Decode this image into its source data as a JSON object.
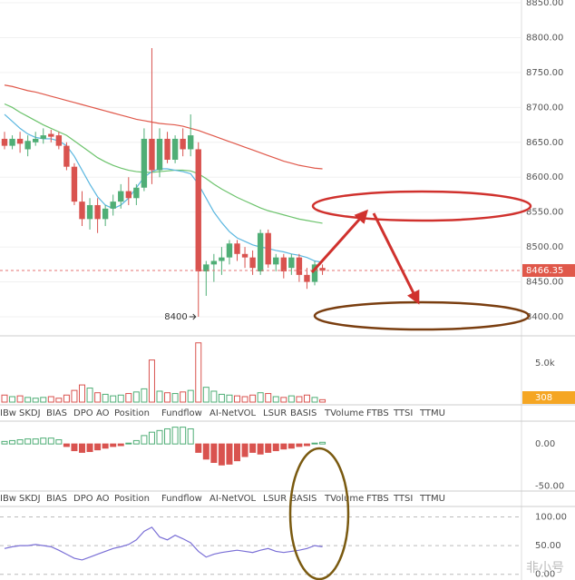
{
  "chart_data": {
    "type": "candlestick",
    "open": [
      8655,
      8645,
      8655,
      8640,
      8650,
      8655,
      8662,
      8660,
      8645,
      8615,
      8565,
      8540,
      8560,
      8540,
      8555,
      8565,
      8580,
      8570,
      8585,
      8655,
      8610,
      8655,
      8625,
      8655,
      8640,
      8640,
      8465,
      8475,
      8480,
      8485,
      8505,
      8490,
      8485,
      8465,
      8520,
      8475,
      8485,
      8470,
      8485,
      8460,
      8450,
      8470
    ],
    "high": [
      8665,
      8660,
      8665,
      8660,
      8665,
      8670,
      8668,
      8665,
      8650,
      8620,
      8580,
      8570,
      8570,
      8560,
      8575,
      8590,
      8600,
      8590,
      8670,
      8785,
      8670,
      8665,
      8660,
      8670,
      8690,
      8650,
      8480,
      8490,
      8500,
      8510,
      8510,
      8500,
      8495,
      8525,
      8525,
      8490,
      8490,
      8490,
      8490,
      8470,
      8480,
      8475
    ],
    "low": [
      8640,
      8640,
      8635,
      8630,
      8645,
      8648,
      8650,
      8640,
      8610,
      8560,
      8530,
      8525,
      8520,
      8530,
      8545,
      8555,
      8560,
      8560,
      8580,
      8590,
      8600,
      8620,
      8620,
      8630,
      8630,
      8400,
      8430,
      8450,
      8460,
      8475,
      8480,
      8470,
      8460,
      8460,
      8470,
      8465,
      8455,
      8460,
      8450,
      8440,
      8445,
      8460
    ],
    "close": [
      8645,
      8655,
      8648,
      8652,
      8655,
      8660,
      8658,
      8645,
      8615,
      8565,
      8540,
      8560,
      8540,
      8555,
      8565,
      8580,
      8570,
      8585,
      8655,
      8610,
      8655,
      8625,
      8655,
      8640,
      8660,
      8465,
      8475,
      8480,
      8485,
      8505,
      8490,
      8485,
      8470,
      8520,
      8475,
      8485,
      8465,
      8485,
      8460,
      8450,
      8475,
      8466
    ],
    "up_color": "#4fae76",
    "down_color": "#d9534f",
    "moving_averages": [
      {
        "color": "#e0584a",
        "values": [
          8732,
          8730,
          8727,
          8724,
          8722,
          8719,
          8716,
          8713,
          8710,
          8707,
          8704,
          8701,
          8698,
          8695,
          8692,
          8689,
          8686,
          8683,
          8681,
          8679,
          8677,
          8676,
          8675,
          8673,
          8670,
          8667,
          8663,
          8659,
          8655,
          8651,
          8647,
          8643,
          8639,
          8635,
          8631,
          8627,
          8623,
          8620,
          8617,
          8615,
          8613,
          8612
        ]
      },
      {
        "color": "#6cc36c",
        "values": [
          8705,
          8700,
          8693,
          8687,
          8681,
          8675,
          8670,
          8665,
          8660,
          8652,
          8644,
          8636,
          8628,
          8622,
          8617,
          8613,
          8610,
          8608,
          8607,
          8607,
          8608,
          8609,
          8610,
          8610,
          8609,
          8605,
          8598,
          8590,
          8583,
          8577,
          8571,
          8566,
          8561,
          8556,
          8552,
          8549,
          8546,
          8543,
          8540,
          8538,
          8536,
          8534
        ]
      },
      {
        "color": "#5bb7e0",
        "values": [
          8690,
          8680,
          8670,
          8662,
          8657,
          8655,
          8655,
          8652,
          8645,
          8630,
          8610,
          8590,
          8572,
          8560,
          8555,
          8560,
          8570,
          8585,
          8600,
          8608,
          8612,
          8612,
          8610,
          8608,
          8605,
          8590,
          8570,
          8550,
          8535,
          8522,
          8513,
          8508,
          8503,
          8500,
          8498,
          8495,
          8493,
          8490,
          8488,
          8485,
          8480,
          8478
        ]
      }
    ],
    "ylim": [
      8400,
      8850
    ],
    "yticks": [
      {
        "value": 8850,
        "label": "8850.00"
      },
      {
        "value": 8800,
        "label": "8800.00"
      },
      {
        "value": 8750,
        "label": "8750.00"
      },
      {
        "value": 8700,
        "label": "8700.00"
      },
      {
        "value": 8650,
        "label": "8650.00"
      },
      {
        "value": 8600,
        "label": "8600.00"
      },
      {
        "value": 8550,
        "label": "8550.00"
      },
      {
        "value": 8500,
        "label": "8500.00"
      },
      {
        "value": 8450,
        "label": "8450.00"
      },
      {
        "value": 8400,
        "label": "8400.00"
      }
    ],
    "last_price": {
      "value": 8466.35,
      "label": "8466.35"
    },
    "low_annotation": "8400",
    "volume": {
      "values": [
        900,
        700,
        800,
        600,
        500,
        600,
        700,
        500,
        900,
        1500,
        2200,
        1800,
        1200,
        1000,
        800,
        900,
        1100,
        1300,
        1700,
        5400,
        1400,
        1200,
        1100,
        1300,
        1500,
        7600,
        1900,
        1400,
        1000,
        900,
        800,
        700,
        900,
        1200,
        1100,
        700,
        600,
        800,
        700,
        900,
        600,
        308
      ],
      "ylim": [
        0,
        7800
      ],
      "yticks": [
        {
          "value": 5000,
          "label": "5.0k"
        }
      ],
      "last": 308
    },
    "tabs": [
      "IBw",
      "SKDJ",
      "BIAS",
      "DPO",
      "AO",
      "Position",
      "Fundflow",
      "AI-NetVOL",
      "LSUR",
      "BASIS",
      "TVolume",
      "FTBS",
      "TTSI",
      "TTMU"
    ],
    "histogram": {
      "values": [
        3,
        4,
        5,
        6,
        6,
        7,
        7,
        5,
        -3,
        -8,
        -10,
        -9,
        -7,
        -5,
        -3,
        -2,
        1,
        4,
        10,
        14,
        16,
        18,
        20,
        20,
        18,
        -10,
        -18,
        -22,
        -25,
        -24,
        -20,
        -15,
        -10,
        -12,
        -10,
        -8,
        -6,
        -5,
        -3,
        -2,
        1,
        2
      ],
      "ylim": [
        -55,
        25
      ],
      "yticks": [
        {
          "value": 0,
          "label": "0.00"
        },
        {
          "value": -50,
          "label": "-50.00"
        }
      ]
    },
    "oscillator": {
      "color": "#7a6fd6",
      "values": [
        45,
        48,
        50,
        50,
        52,
        50,
        48,
        42,
        35,
        28,
        25,
        30,
        35,
        40,
        45,
        48,
        52,
        60,
        75,
        82,
        65,
        60,
        68,
        62,
        55,
        40,
        30,
        35,
        38,
        40,
        42,
        40,
        38,
        42,
        45,
        40,
        38,
        40,
        42,
        45,
        50,
        48
      ],
      "ylim": [
        -2,
        115
      ],
      "yticks": [
        {
          "value": 100,
          "label": "100.00"
        },
        {
          "value": 50,
          "label": "50.00"
        },
        {
          "value": 0,
          "label": "0.00"
        }
      ]
    },
    "watermark": "非小号"
  }
}
